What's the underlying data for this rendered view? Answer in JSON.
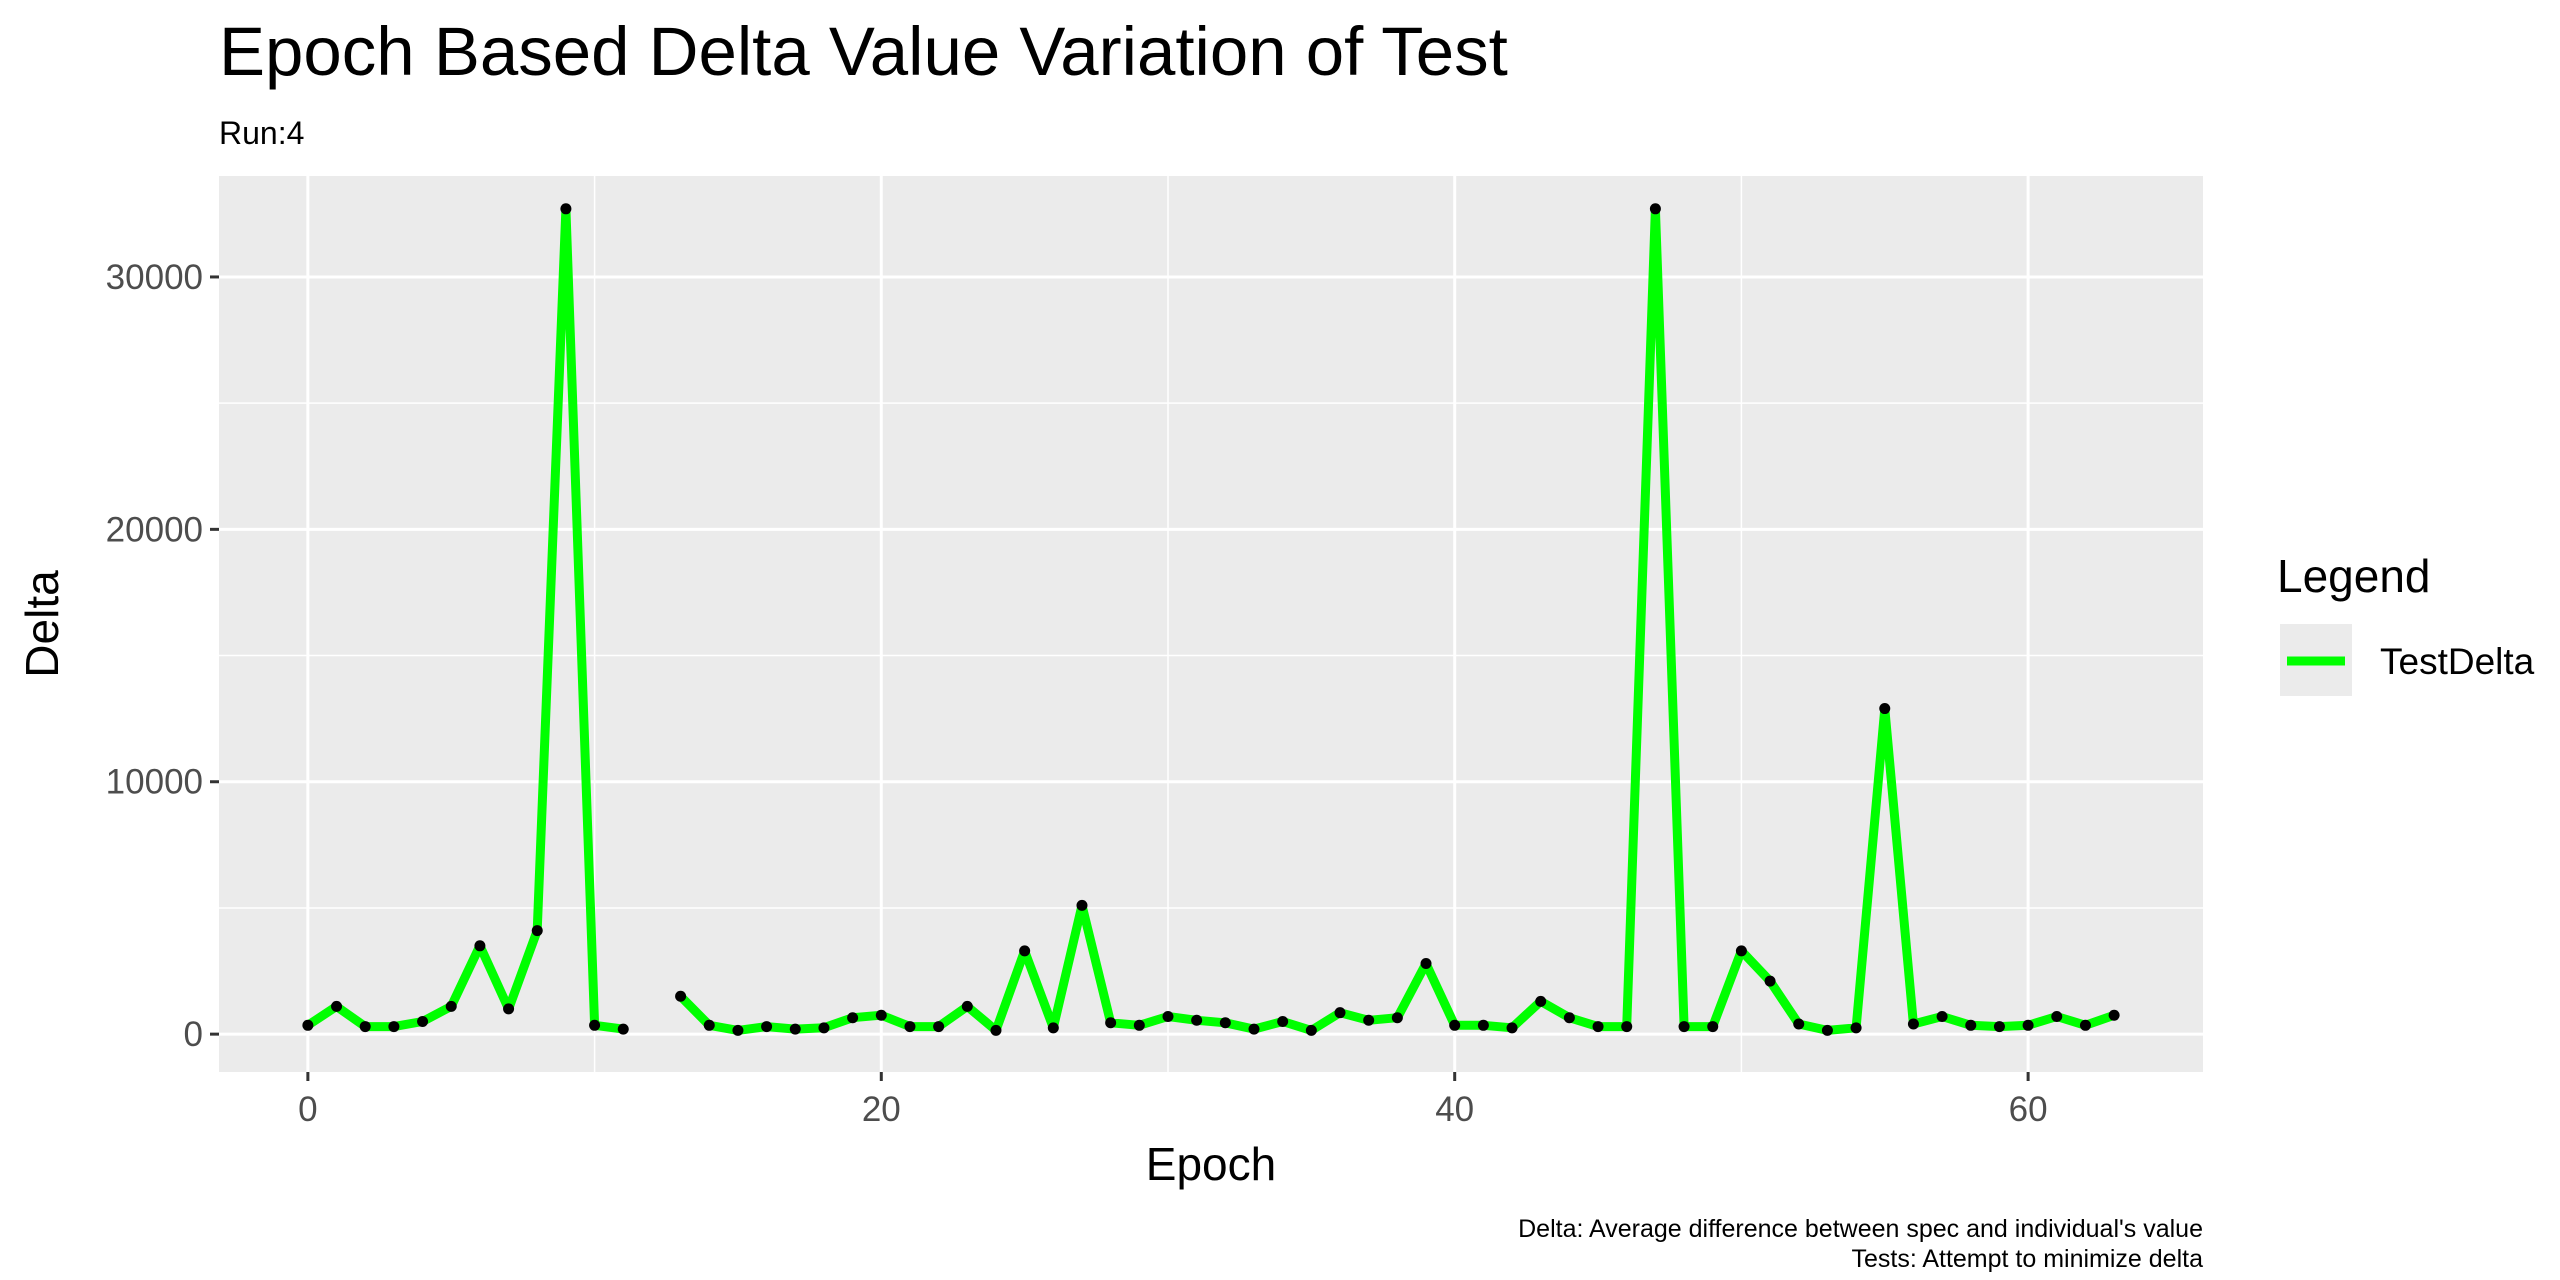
{
  "colors": {
    "panel_bg": "#EBEBEB",
    "grid": "#FFFFFF",
    "line": "#00FF00",
    "point": "#000000",
    "tick_text": "#4D4D4D"
  },
  "chart_data": {
    "type": "line",
    "title": "Epoch Based Delta Value Variation of Test",
    "subtitle": "Run:4",
    "xlabel": "Epoch",
    "ylabel": "Delta",
    "xlim": [
      -3.1,
      66.1
    ],
    "ylim": [
      -1500,
      34000
    ],
    "x_ticks": [
      0,
      20,
      40,
      60
    ],
    "x_tick_labels": [
      "0",
      "20",
      "40",
      "60"
    ],
    "y_ticks": [
      0,
      10000,
      20000,
      30000
    ],
    "y_tick_labels": [
      "0",
      "10000",
      "20000",
      "30000"
    ],
    "grid": true,
    "legend": {
      "title": "Legend",
      "position": "right",
      "entries": [
        "TestDelta"
      ]
    },
    "caption": [
      "Delta: Average difference between spec and individual's value",
      "Tests: Attempt to minimize delta"
    ],
    "series": [
      {
        "name": "TestDelta",
        "x": [
          0,
          1,
          2,
          3,
          4,
          5,
          6,
          7,
          8,
          9,
          10,
          11,
          12,
          13,
          14,
          15,
          16,
          17,
          18,
          19,
          20,
          21,
          22,
          23,
          24,
          25,
          26,
          27,
          28,
          29,
          30,
          31,
          32,
          33,
          34,
          35,
          36,
          37,
          38,
          39,
          40,
          41,
          42,
          43,
          44,
          45,
          46,
          47,
          48,
          49,
          50,
          51,
          52,
          53,
          54,
          55,
          56,
          57,
          58,
          59,
          60,
          61,
          62,
          63
        ],
        "y": [
          350,
          1100,
          300,
          300,
          500,
          1100,
          3500,
          1000,
          4100,
          32700,
          350,
          200,
          null,
          1500,
          350,
          150,
          300,
          200,
          250,
          650,
          750,
          300,
          300,
          1100,
          150,
          3300,
          250,
          5100,
          450,
          350,
          700,
          550,
          450,
          200,
          500,
          150,
          850,
          550,
          650,
          2800,
          350,
          350,
          250,
          1300,
          650,
          300,
          300,
          32700,
          300,
          300,
          3300,
          2100,
          400,
          150,
          250,
          12900,
          400,
          700,
          350,
          300,
          350,
          700,
          350,
          750
        ]
      }
    ]
  }
}
